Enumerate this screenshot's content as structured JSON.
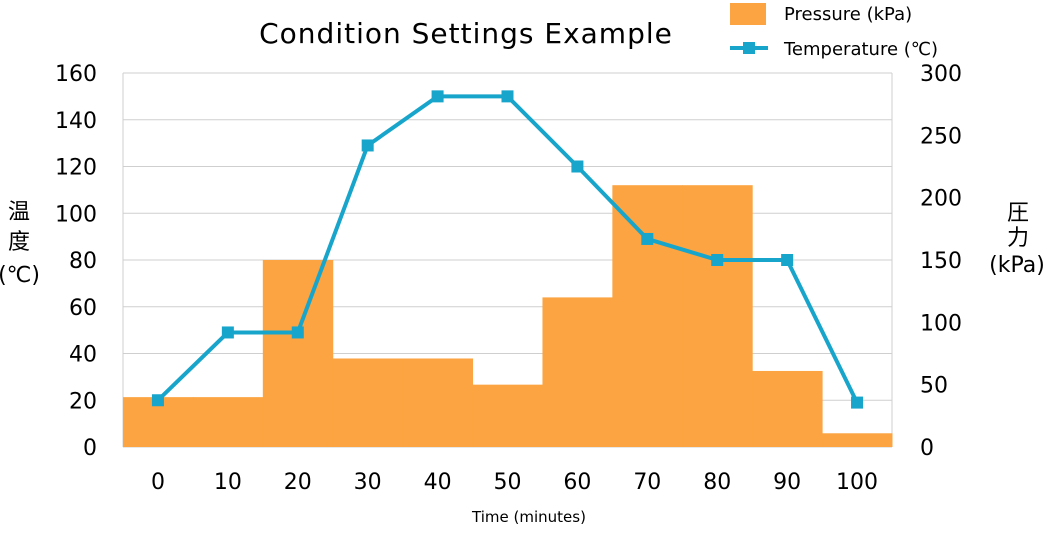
{
  "chart_data": {
    "type": "bar+line",
    "title": "Condition Settings Example",
    "xlabel": "Time (minutes)",
    "ylabel_left": [
      "温",
      "度",
      "(℃)"
    ],
    "ylabel_right": [
      "圧",
      "力",
      "(kPa)"
    ],
    "categories": [
      "0",
      "10",
      "20",
      "30",
      "40",
      "50",
      "60",
      "70",
      "80",
      "90",
      "100"
    ],
    "ylim_left": [
      0,
      160
    ],
    "yticks_left": [
      0,
      20,
      40,
      60,
      80,
      100,
      120,
      140,
      160
    ],
    "ylim_right": [
      0,
      300
    ],
    "yticks_right": [
      0,
      50,
      100,
      150,
      200,
      250,
      300
    ],
    "grid": true,
    "legend_position": "top-right",
    "series": [
      {
        "name": "Pressure (kPa)",
        "type": "bar",
        "axis": "right",
        "color": "#FBA441",
        "values": [
          40,
          40,
          150,
          71,
          71,
          50,
          120,
          210,
          210,
          61,
          11
        ]
      },
      {
        "name": "Temperature (℃)",
        "type": "line",
        "axis": "left",
        "color": "#18A5CB",
        "values": [
          20,
          49,
          49,
          129,
          150,
          150,
          120,
          89,
          80,
          80,
          19
        ]
      }
    ]
  }
}
